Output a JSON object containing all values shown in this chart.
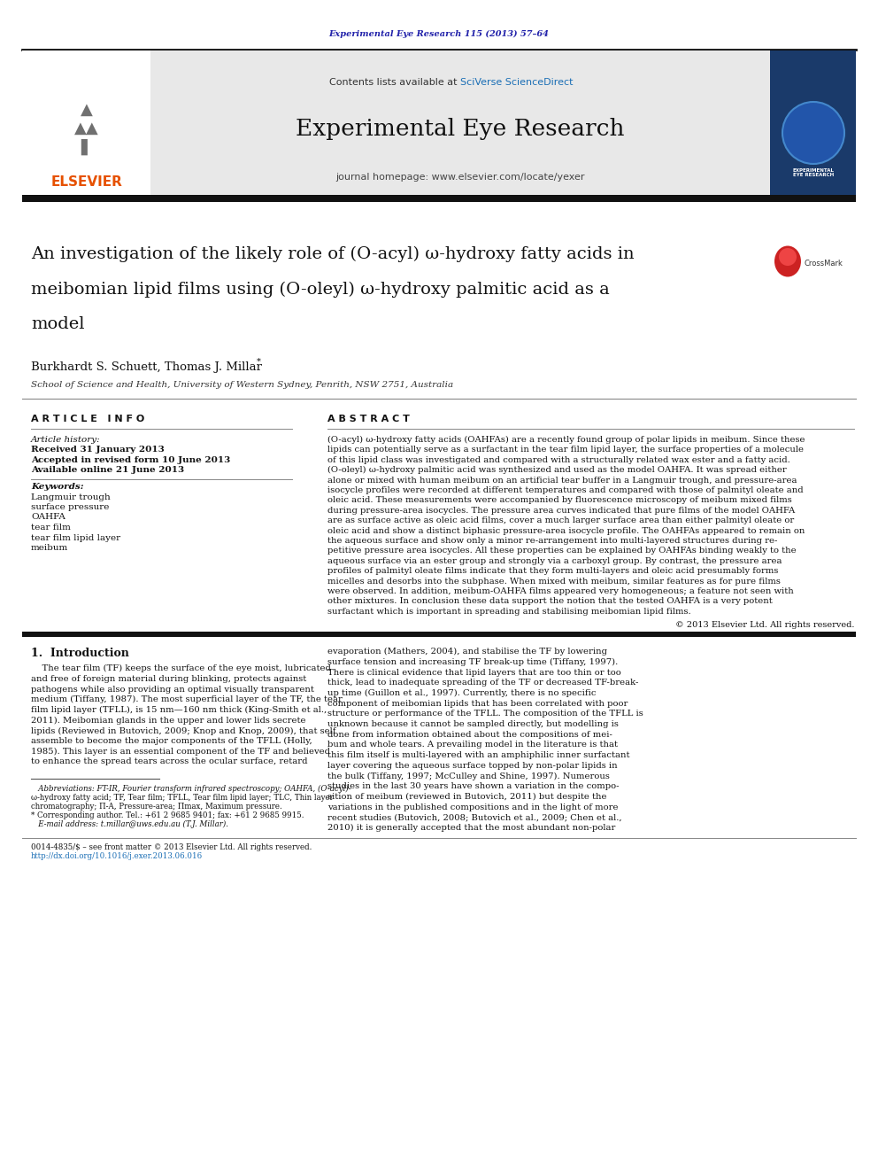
{
  "page_width": 9.92,
  "page_height": 13.23,
  "dpi": 100,
  "bg_color": "#ffffff",
  "journal_ref_text": "Experimental Eye Research 115 (2013) 57–64",
  "journal_ref_color": "#2222aa",
  "header_bg": "#e8e8e8",
  "contents_text": "Contents lists available at ",
  "sciverse_text": "SciVerse ScienceDirect",
  "sciverse_color": "#1a6eb5",
  "journal_title": "Experimental Eye Research",
  "journal_homepage_text": "journal homepage: www.elsevier.com/locate/yexer",
  "elsevier_color": "#e65100",
  "elsevier_text": "ELSEVIER",
  "paper_title_line1": "An investigation of the likely role of (O-acyl) ω-hydroxy fatty acids in",
  "paper_title_line2": "meibomian lipid films using (O-oleyl) ω-hydroxy palmitic acid as a",
  "paper_title_line3": "model",
  "authors_text": "Burkhardt S. Schuett, Thomas J. Millar",
  "affiliation_text": "School of Science and Health, University of Western Sydney, Penrith, NSW 2751, Australia",
  "article_info_header": "A R T I C L E   I N F O",
  "abstract_header": "A B S T R A C T",
  "article_history_label": "Article history:",
  "received_text": "Received 31 January 2013",
  "accepted_text": "Accepted in revised form 10 June 2013",
  "available_text": "Available online 21 June 2013",
  "keywords_label": "Keywords:",
  "keywords": [
    "Langmuir trough",
    "surface pressure",
    "OAHFA",
    "tear film",
    "tear film lipid layer",
    "meibum"
  ],
  "abstract_text_lines": [
    "(O-acyl) ω-hydroxy fatty acids (OAHFAs) are a recently found group of polar lipids in meibum. Since these",
    "lipids can potentially serve as a surfactant in the tear film lipid layer, the surface properties of a molecule",
    "of this lipid class was investigated and compared with a structurally related wax ester and a fatty acid.",
    "(O-oleyl) ω-hydroxy palmitic acid was synthesized and used as the model OAHFA. It was spread either",
    "alone or mixed with human meibum on an artificial tear buffer in a Langmuir trough, and pressure-area",
    "isocycle profiles were recorded at different temperatures and compared with those of palmityl oleate and",
    "oleic acid. These measurements were accompanied by fluorescence microscopy of meibum mixed films",
    "during pressure-area isocycles. The pressure area curves indicated that pure films of the model OAHFA",
    "are as surface active as oleic acid films, cover a much larger surface area than either palmityl oleate or",
    "oleic acid and show a distinct biphasic pressure-area isocycle profile. The OAHFAs appeared to remain on",
    "the aqueous surface and show only a minor re-arrangement into multi-layered structures during re-",
    "petitive pressure area isocycles. All these properties can be explained by OAHFAs binding weakly to the",
    "aqueous surface via an ester group and strongly via a carboxyl group. By contrast, the pressure area",
    "profiles of palmityl oleate films indicate that they form multi-layers and oleic acid presumably forms",
    "micelles and desorbs into the subphase. When mixed with meibum, similar features as for pure films",
    "were observed. In addition, meibum-OAHFA films appeared very homogeneous; a feature not seen with",
    "other mixtures. In conclusion these data support the notion that the tested OAHFA is a very potent",
    "surfactant which is important in spreading and stabilising meibomian lipid films."
  ],
  "copyright_text": "© 2013 Elsevier Ltd. All rights reserved.",
  "intro_header": "1.  Introduction",
  "intro_col1_lines": [
    "    The tear film (TF) keeps the surface of the eye moist, lubricated",
    "and free of foreign material during blinking, protects against",
    "pathogens while also providing an optimal visually transparent",
    "medium (Tiffany, 1987). The most superficial layer of the TF, the tear",
    "film lipid layer (TFLL), is 15 nm—160 nm thick (King-Smith et al.,",
    "2011). Meibomian glands in the upper and lower lids secrete",
    "lipids (Reviewed in Butovich, 2009; Knop and Knop, 2009), that self",
    "assemble to become the major components of the TFLL (Holly,",
    "1985). This layer is an essential component of the TF and believed",
    "to enhance the spread tears across the ocular surface, retard"
  ],
  "intro_col2_lines": [
    "evaporation (Mathers, 2004), and stabilise the TF by lowering",
    "surface tension and increasing TF break-up time (Tiffany, 1997).",
    "There is clinical evidence that lipid layers that are too thin or too",
    "thick, lead to inadequate spreading of the TF or decreased TF-break-",
    "up time (Guillon et al., 1997). Currently, there is no specific",
    "component of meibomian lipids that has been correlated with poor",
    "structure or performance of the TFLL. The composition of the TFLL is",
    "unknown because it cannot be sampled directly, but modelling is",
    "done from information obtained about the compositions of mei-",
    "bum and whole tears. A prevailing model in the literature is that",
    "this film itself is multi-layered with an amphiphilic inner surfactant",
    "layer covering the aqueous surface topped by non-polar lipids in",
    "the bulk (Tiffany, 1997; McCulley and Shine, 1997). Numerous",
    "studies in the last 30 years have shown a variation in the compo-",
    "sition of meibum (reviewed in Butovich, 2011) but despite the",
    "variations in the published compositions and in the light of more",
    "recent studies (Butovich, 2008; Butovich et al., 2009; Chen et al.,",
    "2010) it is generally accepted that the most abundant non-polar"
  ],
  "footnote_line1": "   Abbreviations: FT-IR, Fourier transform infrared spectroscopy; OAHFA, (O-acyl)-",
  "footnote_line2": "ω-hydroxy fatty acid; TF, Tear film; TFLL, Tear film lipid layer; TLC, Thin layer",
  "footnote_line3": "chromatography; Π-A, Pressure-area; Πmax, Maximum pressure.",
  "footnote_corresp": "* Corresponding author. Tel.: +61 2 9685 9401; fax: +61 2 9685 9915.",
  "footnote_email": "   E-mail address: t.millar@uws.edu.au (T.J. Millar).",
  "bottom_line1": "0014-4835/$ – see front matter © 2013 Elsevier Ltd. All rights reserved.",
  "bottom_line2": "http://dx.doi.org/10.1016/j.exer.2013.06.016",
  "link_color": "#1a6eb5",
  "black": "#000000",
  "dark_gray": "#222222",
  "mid_gray": "#666666"
}
